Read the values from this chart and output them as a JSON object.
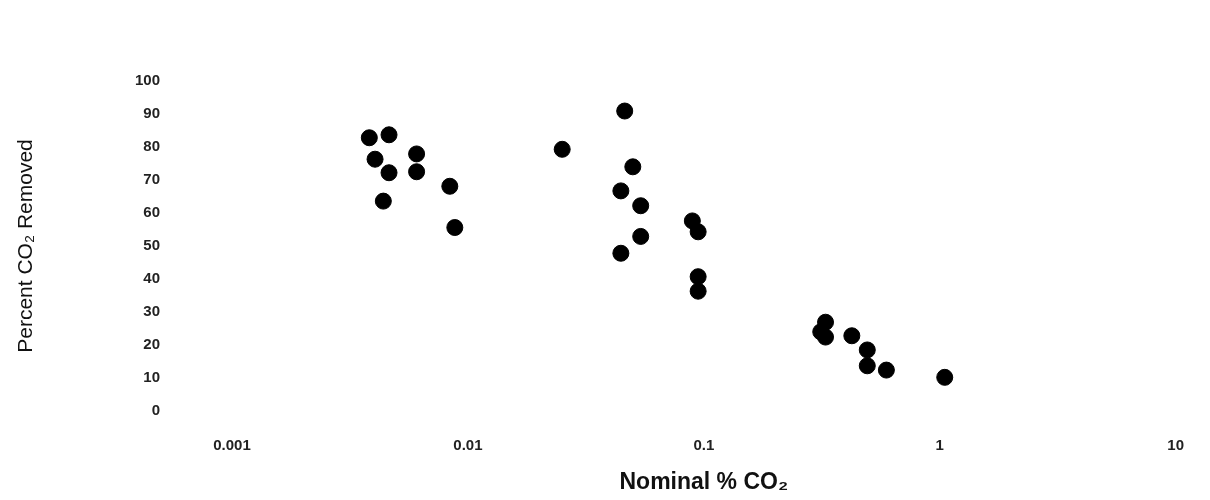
{
  "chart_data": {
    "type": "scatter",
    "xlabel": "Nominal % CO₂",
    "ylabel": "Percent CO₂ Removed",
    "log": "x",
    "xlim": [
      0.001,
      10
    ],
    "xticks": [
      0.001,
      0.01,
      0.1,
      1,
      10
    ],
    "ylim": [
      0,
      100
    ],
    "yticks": [
      0,
      10,
      20,
      30,
      40,
      50,
      60,
      70,
      80,
      90,
      100
    ],
    "grid": false,
    "legend": false,
    "marker": "circle",
    "series": [
      {
        "color": "#000000",
        "x": [
          0.00382,
          0.00463,
          0.0251,
          0.00404,
          0.00606,
          0.00463,
          0.00606,
          0.00838,
          0.00438,
          0.0088,
          0.0462,
          0.05,
          0.0445,
          0.054,
          0.0894,
          0.0946,
          0.054,
          0.0445,
          0.0946,
          0.0946,
          0.328,
          0.313,
          0.328,
          0.424,
          0.493,
          0.493,
          0.594,
          1.05
        ],
        "values": [
          82.8,
          83.7,
          79.3,
          76.3,
          77.9,
          72.2,
          72.5,
          68.1,
          63.6,
          55.6,
          90.9,
          74,
          66.7,
          62.2,
          57.6,
          54.3,
          52.9,
          47.8,
          40.7,
          36.3,
          26.9,
          24,
          22.4,
          22.8,
          18.5,
          13.7,
          12.4,
          10.2
        ]
      }
    ]
  }
}
